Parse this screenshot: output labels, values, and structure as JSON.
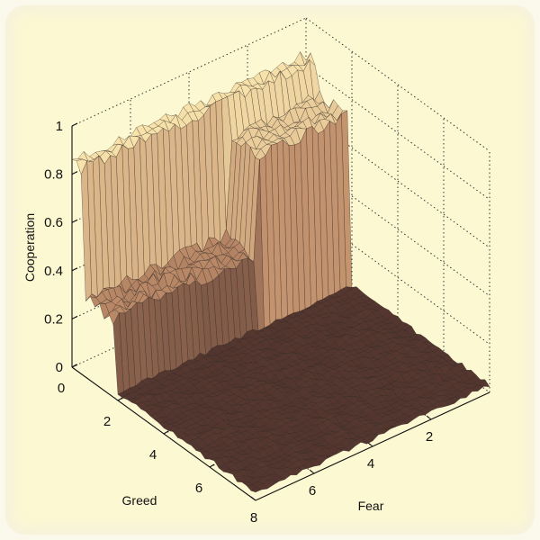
{
  "chart_data": {
    "type": "surface",
    "title": "",
    "zlabel": "Cooperation",
    "xlabel": "Fear",
    "ylabel": "Greed",
    "zlim": [
      0,
      1
    ],
    "xlim": [
      0,
      8
    ],
    "ylim": [
      0,
      8
    ],
    "z_ticks": [
      "0",
      "0.2",
      "0.4",
      "0.6",
      "0.8",
      "1"
    ],
    "fear_ticks": [
      "2",
      "4",
      "6",
      "8"
    ],
    "greed_ticks": [
      "0",
      "2",
      "4",
      "6"
    ],
    "grid": true,
    "colormap": "copper",
    "surface": {
      "description_levels": [
        {
          "fear_range": [
            0,
            8
          ],
          "greed_range": [
            0,
            0.6
          ],
          "cooperation": 0.85
        },
        {
          "fear_range": [
            3,
            8
          ],
          "greed_range": [
            0.6,
            2
          ],
          "cooperation": 0.32
        },
        {
          "fear_range": [
            0,
            3
          ],
          "greed_range": [
            0.6,
            1.8
          ],
          "cooperation": 0.72
        },
        {
          "fear_range": [
            0,
            8
          ],
          "greed_range": [
            2,
            8
          ],
          "cooperation": 0.03
        }
      ]
    },
    "colors": {
      "low": "#4a2e2a",
      "mid": "#c08e6b",
      "high": "#fce9b0",
      "edge": "#2a211c"
    }
  }
}
